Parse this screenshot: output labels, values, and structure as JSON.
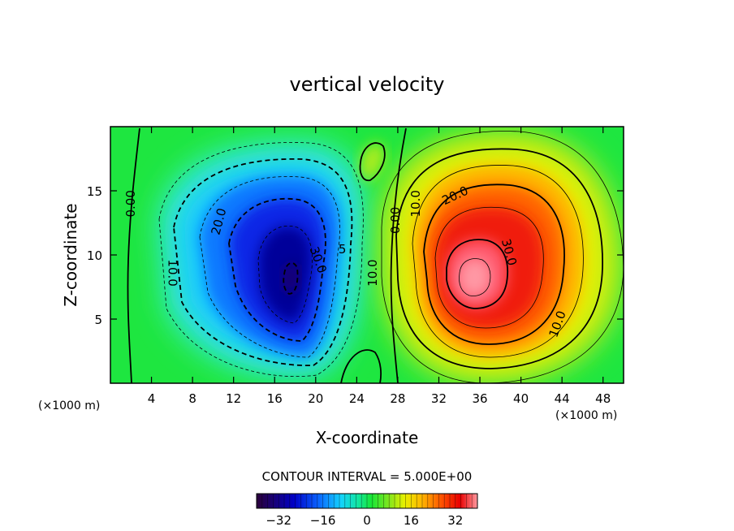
{
  "chart_data": {
    "type": "contour",
    "title": "vertical velocity",
    "xlabel": "X-coordinate",
    "ylabel": "Z-coordinate",
    "x_unit": "(×1000 m)",
    "z_unit": "(×1000 m)",
    "xlim": [
      0,
      50
    ],
    "ylim": [
      0,
      20
    ],
    "x_ticks": [
      4,
      8,
      12,
      16,
      20,
      24,
      28,
      32,
      36,
      40,
      44,
      48
    ],
    "y_ticks": [
      5,
      10,
      15
    ],
    "contour_interval_text": "CONTOUR INTERVAL = 5.000E+00",
    "contour_interval": 5.0,
    "colorbar": {
      "range": [
        -40,
        40
      ],
      "ticks": [
        -32,
        -16,
        0,
        16,
        32
      ],
      "tick_labels": [
        "−32",
        "−16",
        "0",
        "16",
        "32"
      ]
    },
    "features": [
      {
        "name": "downdraft",
        "center_x": 17.5,
        "center_z": 8.5,
        "peak": -35
      },
      {
        "name": "updraft",
        "center_x": 34.5,
        "center_z": 8.5,
        "peak": 38
      }
    ],
    "contour_labels": [
      {
        "text": "0.00",
        "x": 2.0,
        "z": 14.0,
        "angle": -90
      },
      {
        "text": "10.0",
        "x": 6.0,
        "z": 8.6,
        "angle": 90
      },
      {
        "text": "20.0",
        "x": 10.6,
        "z": 12.6,
        "angle": -75
      },
      {
        "text": "30.0",
        "x": 20.2,
        "z": 9.6,
        "angle": 70
      },
      {
        "text": "10.0",
        "x": 25.6,
        "z": 8.6,
        "angle": -90
      },
      {
        "text": "5",
        "x": 22.6,
        "z": 10.4,
        "angle": 0
      },
      {
        "text": "0.00",
        "x": 27.8,
        "z": 12.7,
        "angle": -90
      },
      {
        "text": "10.0",
        "x": 29.8,
        "z": 14.0,
        "angle": -90
      },
      {
        "text": "20.0",
        "x": 33.6,
        "z": 14.6,
        "angle": -25
      },
      {
        "text": "30.0",
        "x": 38.8,
        "z": 10.2,
        "angle": 75
      },
      {
        "text": "10.0",
        "x": 43.6,
        "z": 4.6,
        "angle": -70
      }
    ]
  }
}
